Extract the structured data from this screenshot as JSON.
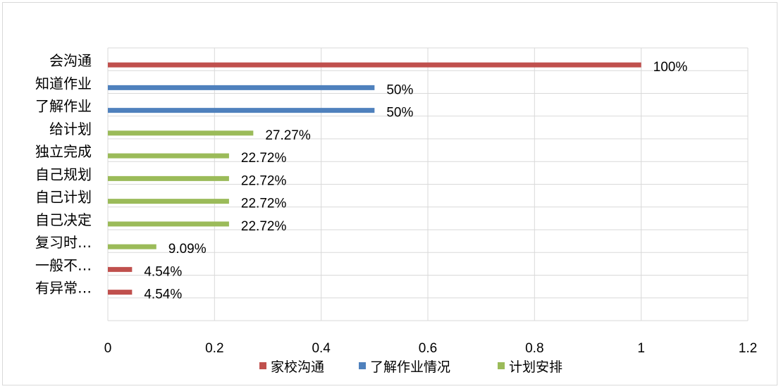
{
  "chart_data": {
    "type": "bar",
    "orientation": "horizontal",
    "title": "",
    "xlabel": "",
    "ylabel": "",
    "xlim": [
      0,
      1.2
    ],
    "x_ticks": [
      "0",
      "0.2",
      "0.4",
      "0.6",
      "0.8",
      "1",
      "1.2"
    ],
    "grid": true,
    "legend_position": "bottom",
    "categories": [
      "会沟通",
      "知道作业",
      "了解作业",
      "给计划",
      "独立完成",
      "自己规划",
      "自己计划",
      "自己决定",
      "复习时…",
      "一般不…",
      "有异常…"
    ],
    "values": [
      1.0,
      0.5,
      0.5,
      0.2727,
      0.2272,
      0.2272,
      0.2272,
      0.2272,
      0.0909,
      0.0454,
      0.0454
    ],
    "data_labels": [
      "100%",
      "50%",
      "50%",
      "27.27%",
      "22.72%",
      "22.72%",
      "22.72%",
      "22.72%",
      "9.09%",
      "4.54%",
      "4.54%"
    ],
    "bar_series": [
      0,
      1,
      1,
      2,
      2,
      2,
      2,
      2,
      2,
      0,
      0
    ],
    "series": [
      {
        "name": "家校沟通",
        "color": "#c0504d"
      },
      {
        "name": "了解作业情况",
        "color": "#4f81bd"
      },
      {
        "name": "计划安排",
        "color": "#9bbb59"
      }
    ]
  }
}
